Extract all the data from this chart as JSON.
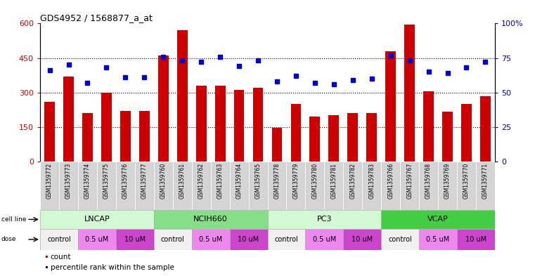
{
  "title": "GDS4952 / 1568877_a_at",
  "samples": [
    "GSM1359772",
    "GSM1359773",
    "GSM1359774",
    "GSM1359775",
    "GSM1359776",
    "GSM1359777",
    "GSM1359760",
    "GSM1359761",
    "GSM1359762",
    "GSM1359763",
    "GSM1359764",
    "GSM1359765",
    "GSM1359778",
    "GSM1359779",
    "GSM1359780",
    "GSM1359781",
    "GSM1359782",
    "GSM1359783",
    "GSM1359766",
    "GSM1359767",
    "GSM1359768",
    "GSM1359769",
    "GSM1359770",
    "GSM1359771"
  ],
  "counts": [
    260,
    370,
    210,
    300,
    220,
    220,
    460,
    570,
    330,
    330,
    310,
    320,
    145,
    250,
    195,
    200,
    210,
    210,
    480,
    595,
    305,
    215,
    250,
    285
  ],
  "percentile_ranks": [
    66,
    70,
    57,
    68,
    61,
    61,
    76,
    73,
    72,
    76,
    69,
    73,
    58,
    62,
    57,
    56,
    59,
    60,
    77,
    73,
    65,
    64,
    68,
    72
  ],
  "cell_lines": [
    {
      "name": "LNCAP",
      "start": 0,
      "end": 6,
      "color": "#d4f7d4"
    },
    {
      "name": "NCIH660",
      "start": 6,
      "end": 12,
      "color": "#88dd88"
    },
    {
      "name": "PC3",
      "start": 12,
      "end": 18,
      "color": "#d4f7d4"
    },
    {
      "name": "VCAP",
      "start": 18,
      "end": 24,
      "color": "#44cc44"
    }
  ],
  "doses": [
    {
      "name": "control",
      "start": 0,
      "end": 2,
      "color": "#f0f0f0"
    },
    {
      "name": "0.5 uM",
      "start": 2,
      "end": 4,
      "color": "#ee88ee"
    },
    {
      "name": "10 uM",
      "start": 4,
      "end": 6,
      "color": "#cc44cc"
    },
    {
      "name": "control",
      "start": 6,
      "end": 8,
      "color": "#f0f0f0"
    },
    {
      "name": "0.5 uM",
      "start": 8,
      "end": 10,
      "color": "#ee88ee"
    },
    {
      "name": "10 uM",
      "start": 10,
      "end": 12,
      "color": "#cc44cc"
    },
    {
      "name": "control",
      "start": 12,
      "end": 14,
      "color": "#f0f0f0"
    },
    {
      "name": "0.5 uM",
      "start": 14,
      "end": 16,
      "color": "#ee88ee"
    },
    {
      "name": "10 uM",
      "start": 16,
      "end": 18,
      "color": "#cc44cc"
    },
    {
      "name": "control",
      "start": 18,
      "end": 20,
      "color": "#f0f0f0"
    },
    {
      "name": "0.5 uM",
      "start": 20,
      "end": 22,
      "color": "#ee88ee"
    },
    {
      "name": "10 uM",
      "start": 22,
      "end": 24,
      "color": "#cc44cc"
    }
  ],
  "bar_color": "#cc0000",
  "dot_color": "#0000cc",
  "left_ylim": [
    0,
    600
  ],
  "left_yticks": [
    0,
    150,
    300,
    450,
    600
  ],
  "right_ylim": [
    0,
    100
  ],
  "right_yticks": [
    0,
    25,
    50,
    75,
    100
  ],
  "right_yticklabels": [
    "0",
    "25",
    "50",
    "75",
    "100%"
  ],
  "bg_color": "#ffffff",
  "bar_width": 0.55,
  "sample_bg": "#d4d4d4",
  "label_fontsize": 5.5,
  "cl_fontsize": 8,
  "dose_fontsize": 7
}
